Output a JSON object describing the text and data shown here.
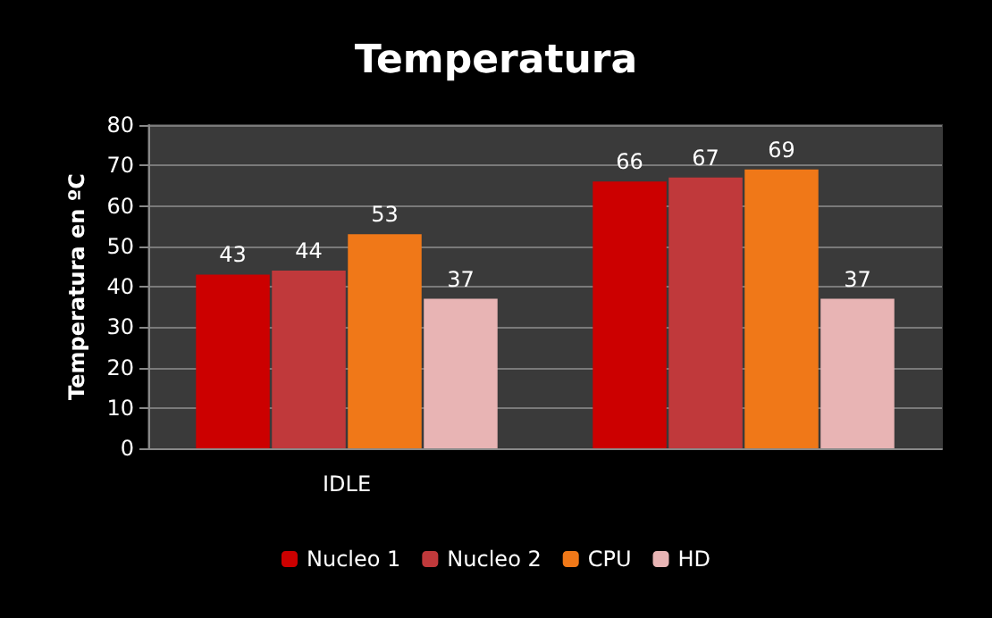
{
  "chart_data": {
    "type": "bar",
    "title": "Temperatura",
    "ylabel": "Temperatura en ºC",
    "categories": [
      "IDLE",
      null
    ],
    "series": [
      {
        "name": "Nucleo 1",
        "color": "#cc0000",
        "values": [
          43,
          66
        ]
      },
      {
        "name": "Nucleo 2",
        "color": "#c0393b",
        "values": [
          44,
          67
        ]
      },
      {
        "name": "CPU",
        "color": "#f07818",
        "values": [
          53,
          69
        ]
      },
      {
        "name": "HD",
        "color": "#e8b4b4",
        "values": [
          37,
          37
        ]
      }
    ],
    "ylim": [
      0,
      80
    ],
    "yticks": [
      0,
      10,
      20,
      30,
      40,
      50,
      60,
      70,
      80
    ],
    "grid": "y",
    "legend": "bottom",
    "data_labels": true
  }
}
